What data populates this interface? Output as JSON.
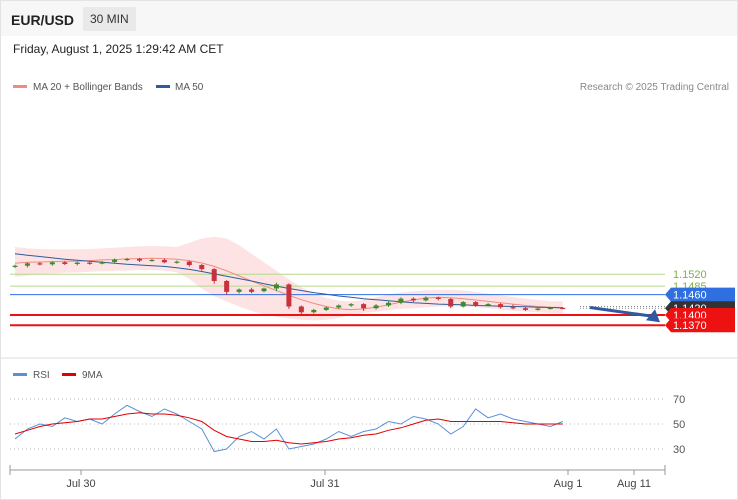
{
  "header": {
    "symbol": "EUR/USD",
    "timeframe": "30 MIN",
    "datetime": "Friday, August 1, 2025 1:29:42 AM CET"
  },
  "legend": {
    "items": [
      {
        "label": "MA 20 + Bollinger Bands",
        "color": "#f28b82"
      },
      {
        "label": "MA 50",
        "color": "#2f5c9e"
      }
    ],
    "credit": "Research © 2025 Trading Central"
  },
  "rsi_legend": {
    "items": [
      {
        "label": "RSI",
        "color": "#5b8fd9"
      },
      {
        "label": "9MA",
        "color": "#e00000"
      }
    ]
  },
  "colors": {
    "bull": "#3f8a2c",
    "bear": "#c8323c",
    "support": "#ee1111",
    "resistance": "#7cb342",
    "pivot": "#2f6fe0",
    "last": "#333333",
    "arrow": "#2d5aa0"
  },
  "chart_data": [
    {
      "type": "line",
      "title": "",
      "x_ticks": [
        "Jul 30",
        "Jul 31",
        "Aug 1",
        "Aug 11"
      ],
      "ylim": [
        1.1355,
        1.1605
      ],
      "levels": [
        {
          "value": 1.152,
          "label": "1.1520",
          "kind": "resistance"
        },
        {
          "value": 1.1485,
          "label": "1.1485",
          "kind": "resistance"
        },
        {
          "value": 1.146,
          "label": "1.1460",
          "kind": "pivot"
        },
        {
          "value": 1.142,
          "label": "1.1420",
          "kind": "last"
        },
        {
          "value": 1.14,
          "label": "1.1400",
          "kind": "support"
        },
        {
          "value": 1.137,
          "label": "1.1370",
          "kind": "support"
        }
      ],
      "forecast": {
        "direction": "down",
        "target": 1.137
      },
      "series": [
        {
          "name": "MA 20 + Bollinger Bands",
          "kind": "band_ma",
          "values": [
            1.1552,
            1.1555,
            1.1556,
            1.1557,
            1.1558,
            1.1558,
            1.156,
            1.1562,
            1.1563,
            1.1565,
            1.1566,
            1.1567,
            1.1566,
            1.1564,
            1.156,
            1.1553,
            1.1543,
            1.153,
            1.1515,
            1.15,
            1.1486,
            1.1472,
            1.1458,
            1.1445,
            1.1434,
            1.1425,
            1.1418,
            1.1416,
            1.1418,
            1.1423,
            1.143,
            1.1438,
            1.1444,
            1.145,
            1.1452,
            1.1451,
            1.1448,
            1.1444,
            1.144,
            1.1436,
            1.1432,
            1.1428,
            1.1425,
            1.1423,
            1.1422
          ],
          "upper": [
            1.16,
            1.1596,
            1.1594,
            1.1593,
            1.1593,
            1.1593,
            1.1594,
            1.1596,
            1.1598,
            1.16,
            1.1602,
            1.1603,
            1.1602,
            1.16,
            1.1612,
            1.1625,
            1.163,
            1.1625,
            1.1605,
            1.158,
            1.1555,
            1.153,
            1.1505,
            1.1482,
            1.1462,
            1.145,
            1.1442,
            1.144,
            1.1444,
            1.1452,
            1.146,
            1.1466,
            1.147,
            1.1473,
            1.1474,
            1.1474,
            1.1472,
            1.1468,
            1.1463,
            1.1458,
            1.1453,
            1.1448,
            1.1444,
            1.1441,
            1.144
          ],
          "lower": [
            1.1512,
            1.1516,
            1.152,
            1.1522,
            1.1524,
            1.1525,
            1.1527,
            1.1529,
            1.153,
            1.1531,
            1.1532,
            1.1532,
            1.1531,
            1.1526,
            1.1506,
            1.1478,
            1.1455,
            1.144,
            1.1425,
            1.1412,
            1.1402,
            1.1395,
            1.139,
            1.1386,
            1.1384,
            1.1386,
            1.1392,
            1.14,
            1.1406,
            1.141,
            1.1414,
            1.1418,
            1.142,
            1.1423,
            1.1425,
            1.1426,
            1.1425,
            1.1423,
            1.142,
            1.1416,
            1.1413,
            1.141,
            1.1408,
            1.1406,
            1.1405
          ]
        },
        {
          "name": "MA 50",
          "kind": "ma",
          "values": [
            1.158,
            1.1576,
            1.1572,
            1.1568,
            1.1564,
            1.1561,
            1.1558,
            1.1555,
            1.1552,
            1.1549,
            1.1547,
            1.1545,
            1.1543,
            1.1539,
            1.1534,
            1.1528,
            1.1521,
            1.1514,
            1.1507,
            1.15,
            1.1492,
            1.1485,
            1.1478,
            1.1472,
            1.1466,
            1.1461,
            1.1456,
            1.1452,
            1.1448,
            1.1445,
            1.1442,
            1.1439,
            1.1436,
            1.1434,
            1.1432,
            1.1431,
            1.143,
            1.1428,
            1.1427,
            1.1426,
            1.1425,
            1.1424,
            1.1423,
            1.1422,
            1.1421
          ]
        }
      ],
      "candles": [
        [
          1.1542,
          1.1545,
          1.1538,
          1.1548
        ],
        [
          1.1545,
          1.1552,
          1.154,
          1.1555
        ],
        [
          1.1552,
          1.1549,
          1.1546,
          1.1556
        ],
        [
          1.1549,
          1.1555,
          1.1545,
          1.1558
        ],
        [
          1.1555,
          1.155,
          1.1547,
          1.1558
        ],
        [
          1.155,
          1.1554,
          1.1546,
          1.1557
        ],
        [
          1.1554,
          1.1551,
          1.1548,
          1.1557
        ],
        [
          1.1551,
          1.1556,
          1.1549,
          1.1559
        ],
        [
          1.1556,
          1.1563,
          1.1553,
          1.1566
        ],
        [
          1.1563,
          1.1565,
          1.1559,
          1.1568
        ],
        [
          1.1565,
          1.156,
          1.1556,
          1.1568
        ],
        [
          1.156,
          1.1562,
          1.1557,
          1.1565
        ],
        [
          1.1562,
          1.1555,
          1.1552,
          1.1566
        ],
        [
          1.1555,
          1.1557,
          1.1551,
          1.156
        ],
        [
          1.1557,
          1.1547,
          1.1542,
          1.156
        ],
        [
          1.1547,
          1.1535,
          1.153,
          1.155
        ],
        [
          1.1535,
          1.15,
          1.1492,
          1.1538
        ],
        [
          1.15,
          1.1468,
          1.146,
          1.1503
        ],
        [
          1.1468,
          1.1475,
          1.1463,
          1.1478
        ],
        [
          1.1475,
          1.1468,
          1.1464,
          1.148
        ],
        [
          1.147,
          1.1478,
          1.1467,
          1.1481
        ],
        [
          1.1478,
          1.149,
          1.147,
          1.1495
        ],
        [
          1.149,
          1.1425,
          1.1418,
          1.1493
        ],
        [
          1.1425,
          1.1408,
          1.1402,
          1.1428
        ],
        [
          1.1408,
          1.1415,
          1.1404,
          1.1418
        ],
        [
          1.1415,
          1.1422,
          1.1412,
          1.1425
        ],
        [
          1.1422,
          1.1428,
          1.1418,
          1.1431
        ],
        [
          1.1428,
          1.1432,
          1.1424,
          1.1435
        ],
        [
          1.1432,
          1.142,
          1.1412,
          1.1435
        ],
        [
          1.142,
          1.1428,
          1.1416,
          1.1432
        ],
        [
          1.1428,
          1.1436,
          1.1424,
          1.144
        ],
        [
          1.1436,
          1.1448,
          1.1432,
          1.1452
        ],
        [
          1.1448,
          1.1443,
          1.1438,
          1.1452
        ],
        [
          1.1443,
          1.1451,
          1.144,
          1.1455
        ],
        [
          1.1451,
          1.1447,
          1.1443,
          1.1454
        ],
        [
          1.1447,
          1.1425,
          1.142,
          1.145
        ],
        [
          1.1425,
          1.1438,
          1.1422,
          1.1441
        ],
        [
          1.1438,
          1.1428,
          1.1424,
          1.1441
        ],
        [
          1.1428,
          1.1432,
          1.1425,
          1.1435
        ],
        [
          1.1432,
          1.1423,
          1.1419,
          1.1435
        ],
        [
          1.1423,
          1.142,
          1.1417,
          1.1431
        ],
        [
          1.142,
          1.1415,
          1.1412,
          1.1424
        ],
        [
          1.1415,
          1.1419,
          1.1413,
          1.1422
        ],
        [
          1.1419,
          1.1421,
          1.1416,
          1.1424
        ],
        [
          1.1421,
          1.142,
          1.1417,
          1.1423
        ]
      ]
    },
    {
      "type": "line",
      "title": "",
      "ylim": [
        20,
        80
      ],
      "y_ticks": [
        70,
        50,
        30
      ],
      "series": [
        {
          "name": "RSI",
          "values": [
            38,
            46,
            50,
            48,
            55,
            52,
            54,
            50,
            58,
            65,
            60,
            56,
            62,
            58,
            52,
            46,
            28,
            30,
            40,
            44,
            38,
            46,
            30,
            32,
            34,
            38,
            44,
            40,
            44,
            46,
            52,
            50,
            56,
            54,
            50,
            42,
            48,
            62,
            55,
            58,
            54,
            52,
            50,
            48,
            52
          ]
        },
        {
          "name": "9MA",
          "values": [
            42,
            45,
            48,
            50,
            51,
            52,
            54,
            54,
            56,
            58,
            59,
            58,
            58,
            57,
            55,
            52,
            45,
            40,
            38,
            36,
            36,
            37,
            35,
            34,
            35,
            36,
            38,
            39,
            41,
            42,
            45,
            47,
            50,
            53,
            54,
            52,
            52,
            52,
            52,
            52,
            51,
            50,
            50,
            50,
            50
          ]
        }
      ]
    }
  ]
}
